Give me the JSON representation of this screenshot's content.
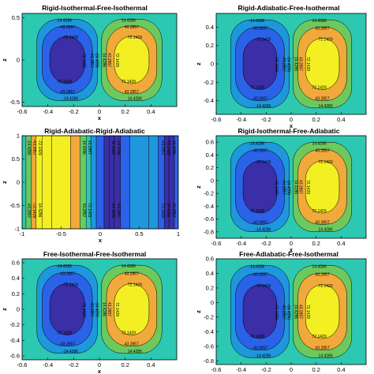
{
  "colors": {
    "level_fill": [
      "#3a2fa6",
      "#2a63e8",
      "#1f97dc",
      "#2cc8b2",
      "#6dc95e",
      "#f0a93a",
      "#f3ef22"
    ],
    "background_level": "#2cc8b2"
  },
  "contour_labels": [
    "-14.4286",
    "-43.2857",
    "-72.1429",
    "14.4286",
    "43.2857",
    "72.1429"
  ],
  "chart_data": [
    {
      "type": "contour",
      "title": "Rigid-Isothermal-Free-Isothermal",
      "xlabel": "x",
      "ylabel": "z",
      "xlim": [
        -0.6,
        0.6
      ],
      "ylim": [
        -0.55,
        0.55
      ],
      "xticks": [
        "-0.6",
        "-0.4",
        "-0.2",
        "0",
        "0.2",
        "0.4"
      ],
      "yticks": [
        "0.5",
        "0",
        "-0.5"
      ],
      "yticks_values": [
        0.5,
        0,
        -0.5
      ],
      "levels": [
        -72.1429,
        -43.2857,
        -14.4286,
        14.4286,
        43.2857,
        72.1429
      ],
      "cell_centers": [
        -0.25,
        0.25
      ]
    },
    {
      "type": "contour",
      "title": "Rigid-Adiabatic-Free-Isothermal",
      "xlabel": "x",
      "ylabel": "z",
      "xlim": [
        -0.6,
        0.6
      ],
      "ylim": [
        -0.55,
        0.55
      ],
      "xticks": [
        "-0.6",
        "-0.4",
        "-0.2",
        "0",
        "0.2",
        "0.4"
      ],
      "yticks": [
        "0.4",
        "0.2",
        "0",
        "-0.2",
        "-0.4"
      ],
      "yticks_values": [
        0.4,
        0.2,
        0,
        -0.2,
        -0.4
      ],
      "levels": [
        -72.1429,
        -43.2857,
        -14.4286,
        14.4286,
        43.2857,
        72.1429
      ],
      "cell_centers": [
        -0.25,
        0.25
      ]
    },
    {
      "type": "contour",
      "title": "Rigid-Adiabatic-Rigid-Adiabatic",
      "xlabel": "x",
      "ylabel": "z",
      "xlim": [
        -1,
        1
      ],
      "ylim": [
        -1,
        1
      ],
      "xticks": [
        "-1",
        "-0.5",
        "0",
        "0.5",
        "1"
      ],
      "yticks": [
        "1",
        "0.5",
        "0",
        "-0.5",
        "-1"
      ],
      "yticks_values": [
        1,
        0.5,
        0,
        -0.5,
        -1
      ],
      "levels": [
        -72.1429,
        -43.2857,
        -14.4286,
        14.4286,
        43.2857,
        72.1429
      ],
      "vertical_bands": true
    },
    {
      "type": "contour",
      "title": "Rigid-Isothermal-Free-Adiabatic",
      "xlabel": "x",
      "ylabel": "z",
      "xlim": [
        -0.6,
        0.6
      ],
      "ylim": [
        -0.9,
        0.7
      ],
      "xticks": [
        "-0.6",
        "-0.4",
        "-0.2",
        "0",
        "0.2",
        "0.4"
      ],
      "yticks": [
        "0.6",
        "0.4",
        "0.2",
        "0",
        "-0.2",
        "-0.4",
        "-0.6",
        "-0.8"
      ],
      "yticks_values": [
        0.6,
        0.4,
        0.2,
        0,
        -0.2,
        -0.4,
        -0.6,
        -0.8
      ],
      "levels": [
        -72.1429,
        -43.2857,
        -14.4286,
        14.4286,
        43.2857,
        72.1429
      ],
      "cell_centers": [
        -0.25,
        0.25
      ]
    },
    {
      "type": "contour",
      "title": "Free-Isothermal-Free-Isothermal",
      "xlabel": "x",
      "ylabel": "z",
      "xlim": [
        -0.6,
        0.6
      ],
      "ylim": [
        -0.65,
        0.65
      ],
      "xticks": [
        "-0.6",
        "-0.4",
        "-0.2",
        "0",
        "0.2",
        "0.4"
      ],
      "yticks": [
        "0.6",
        "0.4",
        "0.2",
        "0",
        "-0.2",
        "-0.4",
        "-0.6"
      ],
      "yticks_values": [
        0.6,
        0.4,
        0.2,
        0,
        -0.2,
        -0.4,
        -0.6
      ],
      "levels": [
        -72.1429,
        -43.2857,
        -14.4286,
        14.4286,
        43.2857,
        72.1429
      ],
      "cell_centers": [
        -0.25,
        0.25
      ]
    },
    {
      "type": "contour",
      "title": "Free-Adiabatic-Free-Isothermal",
      "xlabel": "x",
      "ylabel": "z",
      "xlim": [
        -0.6,
        0.6
      ],
      "ylim": [
        -0.85,
        0.6
      ],
      "xticks": [
        "-0.6",
        "-0.4",
        "-0.2",
        "0",
        "0.2",
        "0.4"
      ],
      "yticks": [
        "0.6",
        "0.4",
        "0.2",
        "0",
        "-0.2",
        "-0.4",
        "-0.6",
        "-0.8"
      ],
      "yticks_values": [
        0.6,
        0.4,
        0.2,
        0,
        -0.2,
        -0.4,
        -0.6,
        -0.8
      ],
      "levels": [
        -72.1429,
        -43.2857,
        -14.4286,
        14.4286,
        43.2857,
        72.1429
      ],
      "cell_centers": [
        -0.25,
        0.25
      ]
    }
  ]
}
